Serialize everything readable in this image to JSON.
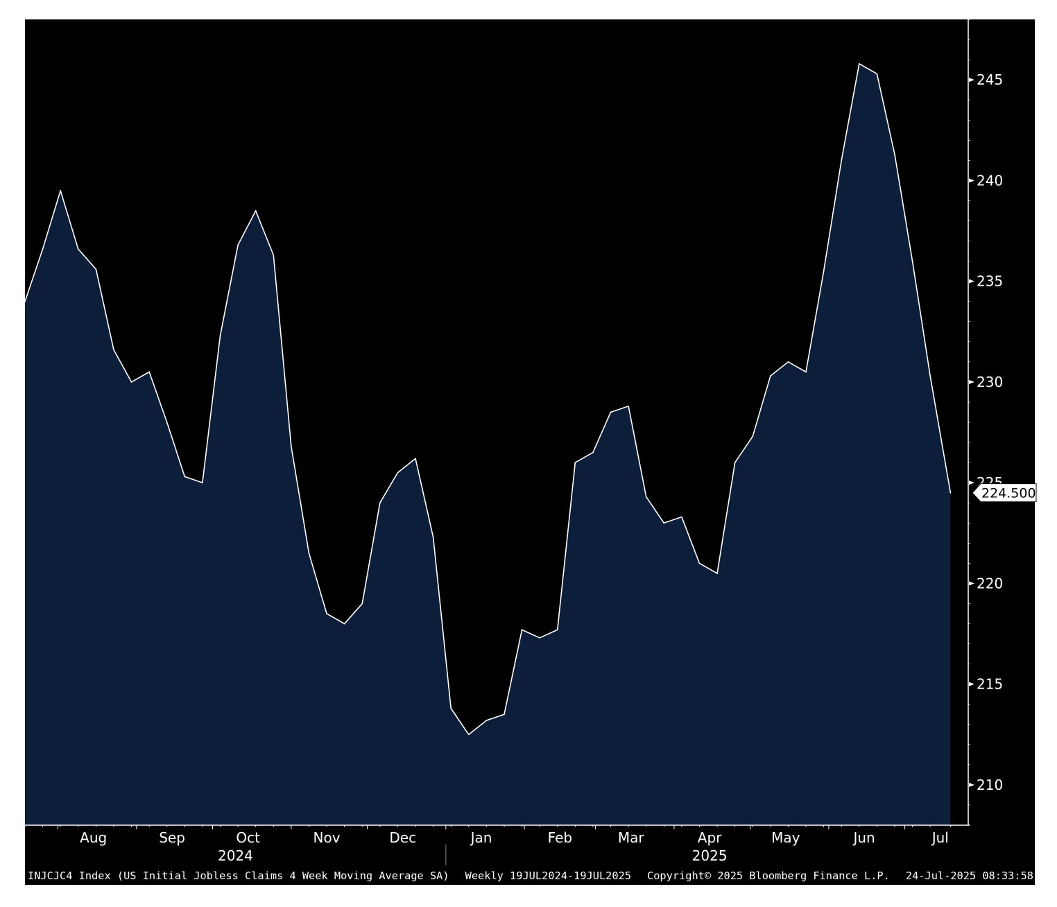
{
  "footer": {
    "index_description": "INJCJC4 Index (US Initial Jobless Claims 4 Week Moving Average SA)",
    "frequency_range": "Weekly 19JUL2024-19JUL2025",
    "copyright": "Copyright© 2025 Bloomberg Finance L.P.",
    "timestamp": "24-Jul-2025 08:33:58"
  },
  "last_value_label": "224.500",
  "colors": {
    "background": "#000000",
    "area_fill": "#0c1e3a",
    "line": "#ffffff",
    "text": "#ffffff",
    "page_margin": "#ffffff"
  },
  "chart_data": {
    "type": "area",
    "title": "",
    "xlabel": "",
    "ylabel": "",
    "ylim": [
      208,
      248
    ],
    "yticks": [
      210,
      215,
      220,
      225,
      230,
      235,
      240,
      245
    ],
    "ytick_labels": [
      "210",
      "215",
      "220",
      "225",
      "230",
      "235",
      "240",
      "245"
    ],
    "y_axis_side": "right",
    "grid": false,
    "legend": "none",
    "xlim": [
      "2024-07-19",
      "2025-07-26"
    ],
    "month_labels": [
      {
        "date": "2024-08-15",
        "label": "Aug"
      },
      {
        "date": "2024-09-15",
        "label": "Sep"
      },
      {
        "date": "2024-10-15",
        "label": "Oct"
      },
      {
        "date": "2024-11-15",
        "label": "Nov"
      },
      {
        "date": "2024-12-15",
        "label": "Dec"
      },
      {
        "date": "2025-01-15",
        "label": "Jan"
      },
      {
        "date": "2025-02-15",
        "label": "Feb"
      },
      {
        "date": "2025-03-15",
        "label": "Mar"
      },
      {
        "date": "2025-04-15",
        "label": "Apr"
      },
      {
        "date": "2025-05-15",
        "label": "May"
      },
      {
        "date": "2025-06-15",
        "label": "Jun"
      },
      {
        "date": "2025-07-15",
        "label": "Jul"
      }
    ],
    "month_ticks": [
      "2024-08-01",
      "2024-09-01",
      "2024-10-01",
      "2024-11-01",
      "2024-12-01",
      "2025-01-01",
      "2025-02-01",
      "2025-03-01",
      "2025-04-01",
      "2025-05-01",
      "2025-06-01",
      "2025-07-01"
    ],
    "year_labels": [
      {
        "date": "2024-10-10",
        "label": "2024"
      },
      {
        "date": "2025-04-15",
        "label": "2025"
      }
    ],
    "year_separator": "2025-01-01",
    "last_value": 224.5,
    "x": [
      "2024-07-19",
      "2024-07-26",
      "2024-08-02",
      "2024-08-09",
      "2024-08-16",
      "2024-08-23",
      "2024-08-30",
      "2024-09-06",
      "2024-09-13",
      "2024-09-20",
      "2024-09-27",
      "2024-10-04",
      "2024-10-11",
      "2024-10-18",
      "2024-10-25",
      "2024-11-01",
      "2024-11-08",
      "2024-11-15",
      "2024-11-22",
      "2024-11-29",
      "2024-12-06",
      "2024-12-13",
      "2024-12-20",
      "2024-12-27",
      "2025-01-03",
      "2025-01-10",
      "2025-01-17",
      "2025-01-24",
      "2025-01-31",
      "2025-02-07",
      "2025-02-14",
      "2025-02-21",
      "2025-02-28",
      "2025-03-07",
      "2025-03-14",
      "2025-03-21",
      "2025-03-28",
      "2025-04-04",
      "2025-04-11",
      "2025-04-18",
      "2025-04-25",
      "2025-05-02",
      "2025-05-09",
      "2025-05-16",
      "2025-05-23",
      "2025-05-30",
      "2025-06-06",
      "2025-06-13",
      "2025-06-20",
      "2025-06-27",
      "2025-07-04",
      "2025-07-11",
      "2025-07-19"
    ],
    "series": [
      {
        "values": [
          234,
          236.6,
          239.5,
          236.6,
          235.6,
          231.6,
          230,
          230.5,
          228,
          225.3,
          225,
          232.3,
          236.8,
          238.5,
          236.3,
          226.8,
          221.5,
          218.5,
          218,
          219,
          224,
          225.5,
          226.2,
          222.3,
          213.8,
          212.5,
          213.2,
          213.5,
          217.7,
          217.3,
          217.7,
          226,
          226.5,
          228.5,
          228.8,
          224.3,
          223,
          223.3,
          221,
          220.5,
          226,
          227.3,
          230.3,
          231,
          230.5,
          235.5,
          241,
          245.8,
          245.3,
          241.3,
          236,
          230.3,
          224.5
        ]
      }
    ]
  }
}
